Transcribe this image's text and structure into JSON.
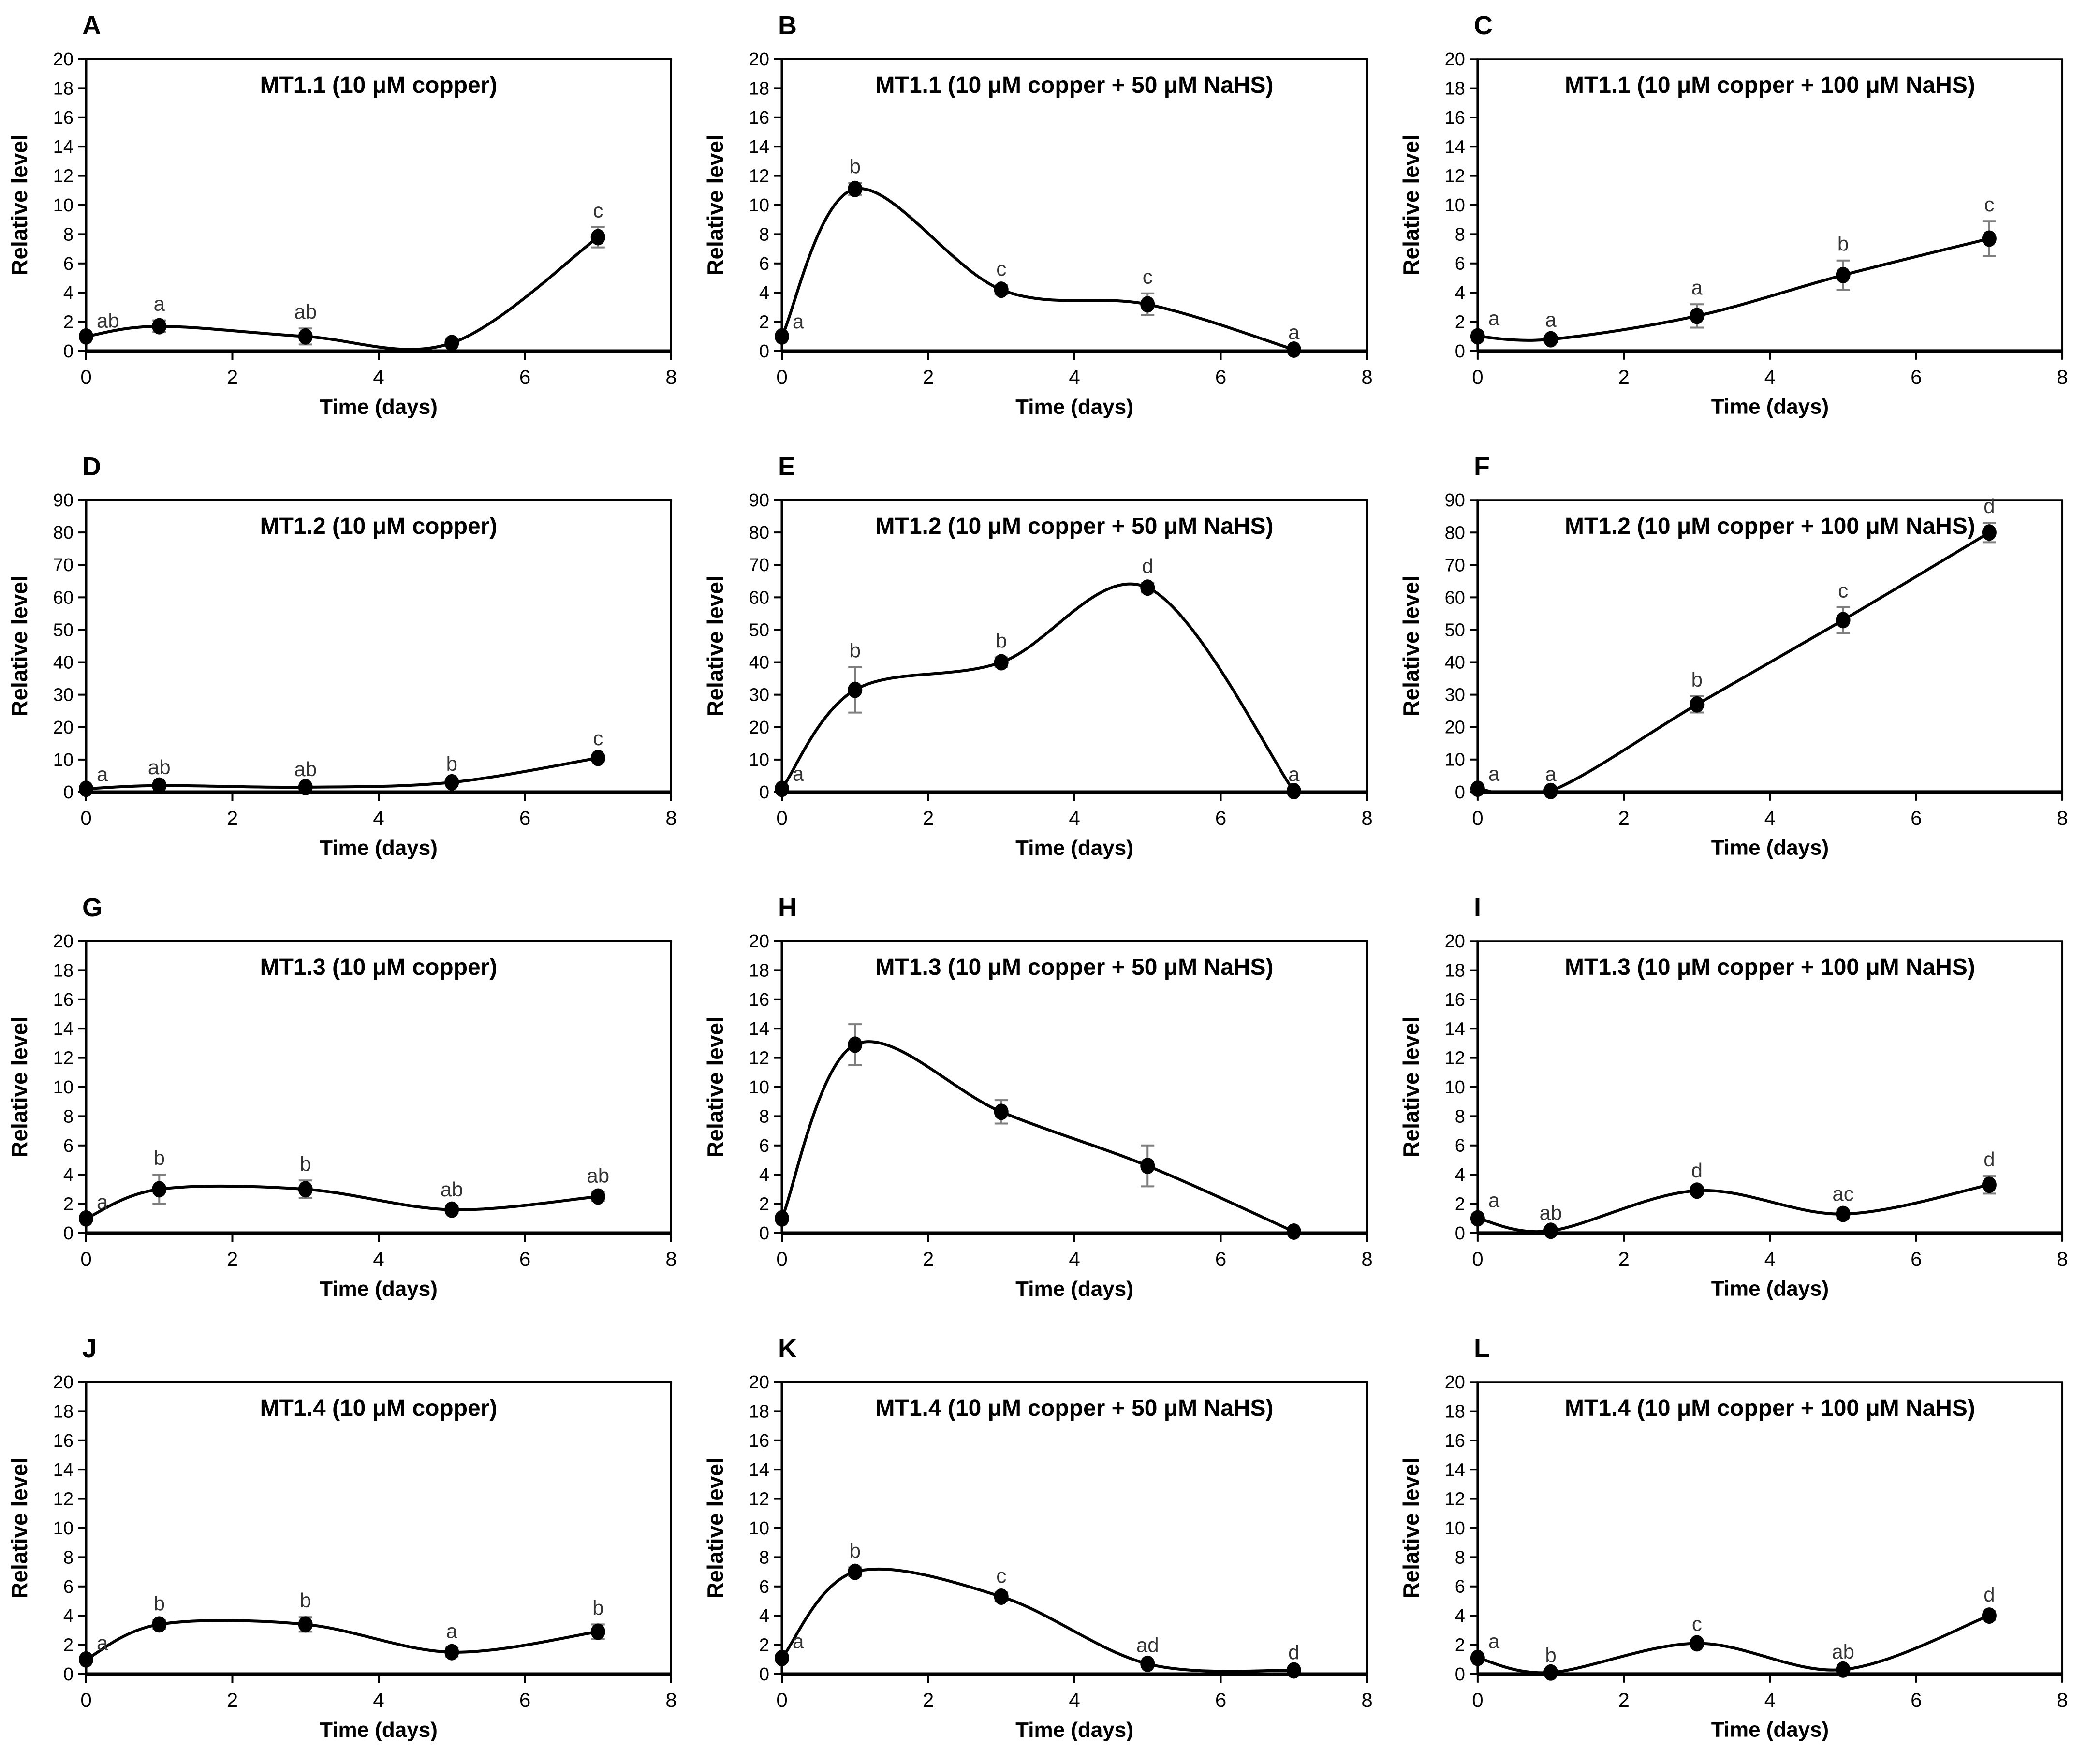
{
  "figure": {
    "xlabel": "Time (days)",
    "ylabel": "Relative level",
    "xlim": [
      0,
      8
    ],
    "x_ticks": [
      0,
      2,
      4,
      6,
      8
    ],
    "grid": false,
    "legend": "none",
    "colors": {
      "line": "#000000",
      "marker": "#000000",
      "error_bar": "#7f7f7f",
      "axis": "#000000",
      "text": "#000000",
      "sig_letter": "#333333"
    }
  },
  "chart_data": [
    {
      "type": "line",
      "panel": "A",
      "title": "MT1.1 (10 μM copper)",
      "xlabel": "Time (days)",
      "ylabel": "Relative level",
      "ylim": [
        0,
        20
      ],
      "ytick_step": 2,
      "x": [
        0,
        1,
        3,
        5,
        7
      ],
      "y": [
        1.0,
        1.7,
        1.0,
        0.55,
        7.8
      ],
      "err": [
        0.15,
        0.4,
        0.55,
        0.1,
        0.7
      ],
      "sig": [
        "ab",
        "a",
        "ab",
        "",
        "c"
      ]
    },
    {
      "type": "line",
      "panel": "B",
      "title": "MT1.1 (10 μM copper + 50 μM NaHS)",
      "xlabel": "Time (days)",
      "ylabel": "Relative level",
      "ylim": [
        0,
        20
      ],
      "ytick_step": 2,
      "x": [
        0,
        1,
        3,
        5,
        7
      ],
      "y": [
        1.0,
        11.1,
        4.2,
        3.2,
        0.1
      ],
      "err": [
        0.1,
        0.4,
        0.3,
        0.75,
        0.05
      ],
      "sig": [
        "a",
        "b",
        "c",
        "c",
        "a"
      ]
    },
    {
      "type": "line",
      "panel": "C",
      "title": "MT1.1 (10 μM copper + 100 μM NaHS)",
      "xlabel": "Time (days)",
      "ylabel": "Relative level",
      "ylim": [
        0,
        20
      ],
      "ytick_step": 2,
      "x": [
        0,
        1,
        3,
        5,
        7
      ],
      "y": [
        1.0,
        0.8,
        2.4,
        5.2,
        7.7
      ],
      "err": [
        0.3,
        0.2,
        0.8,
        1.0,
        1.2
      ],
      "sig": [
        "a",
        "a",
        "a",
        "b",
        "c"
      ]
    },
    {
      "type": "line",
      "panel": "D",
      "title": "MT1.2 (10 μM copper)",
      "xlabel": "Time (days)",
      "ylabel": "Relative level",
      "ylim": [
        0,
        90
      ],
      "ytick_step": 10,
      "x": [
        0,
        1,
        3,
        5,
        7
      ],
      "y": [
        1.0,
        2.0,
        1.5,
        3.0,
        10.5
      ],
      "err": [
        0.3,
        0.5,
        0.4,
        0.6,
        1.0
      ],
      "sig": [
        "a",
        "ab",
        "ab",
        "b",
        "c"
      ]
    },
    {
      "type": "line",
      "panel": "E",
      "title": "MT1.2 (10 μM copper + 50 μM NaHS)",
      "xlabel": "Time (days)",
      "ylabel": "Relative level",
      "ylim": [
        0,
        90
      ],
      "ytick_step": 10,
      "x": [
        0,
        1,
        3,
        5,
        7
      ],
      "y": [
        1.0,
        31.5,
        40.0,
        63.0,
        0.3
      ],
      "err": [
        0.4,
        7.0,
        1.5,
        1.5,
        0.1
      ],
      "sig": [
        "a",
        "b",
        "b",
        "d",
        "a"
      ]
    },
    {
      "type": "line",
      "panel": "F",
      "title": "MT1.2 (10 μM copper + 100 μM NaHS)",
      "xlabel": "Time (days)",
      "ylabel": "Relative level",
      "ylim": [
        0,
        90
      ],
      "ytick_step": 10,
      "x": [
        0,
        1,
        3,
        5,
        7
      ],
      "y": [
        1.0,
        0.3,
        27.0,
        53.0,
        80.0
      ],
      "err": [
        0.4,
        0.1,
        2.5,
        4.0,
        3.0
      ],
      "sig": [
        "a",
        "a",
        "b",
        "c",
        "d"
      ]
    },
    {
      "type": "line",
      "panel": "G",
      "title": "MT1.3 (10 μM copper)",
      "xlabel": "Time (days)",
      "ylabel": "Relative level",
      "ylim": [
        0,
        20
      ],
      "ytick_step": 2,
      "x": [
        0,
        1,
        3,
        5,
        7
      ],
      "y": [
        1.0,
        3.0,
        3.0,
        1.6,
        2.5
      ],
      "err": [
        0.2,
        1.0,
        0.6,
        0.25,
        0.3
      ],
      "sig": [
        "a",
        "b",
        "b",
        "ab",
        "ab"
      ]
    },
    {
      "type": "line",
      "panel": "H",
      "title": "MT1.3 (10 μM copper + 50 μM NaHS)",
      "xlabel": "Time (days)",
      "ylabel": "Relative level",
      "ylim": [
        0,
        20
      ],
      "ytick_step": 2,
      "x": [
        0,
        1,
        3,
        5,
        7
      ],
      "y": [
        1.0,
        12.9,
        8.3,
        4.6,
        0.1
      ],
      "err": [
        0.15,
        1.4,
        0.8,
        1.4,
        0.05
      ],
      "sig": [
        "",
        "",
        "",
        "",
        ""
      ]
    },
    {
      "type": "line",
      "panel": "I",
      "title": "MT1.3 (10 μM copper + 100 μM NaHS)",
      "xlabel": "Time (days)",
      "ylabel": "Relative level",
      "ylim": [
        0,
        20
      ],
      "ytick_step": 2,
      "x": [
        0,
        1,
        3,
        5,
        7
      ],
      "y": [
        1.0,
        0.15,
        2.9,
        1.3,
        3.3
      ],
      "err": [
        0.3,
        0.1,
        0.25,
        0.25,
        0.6
      ],
      "sig": [
        "a",
        "ab",
        "d",
        "ac",
        "d"
      ]
    },
    {
      "type": "line",
      "panel": "J",
      "title": "MT1.4 (10 μM copper)",
      "xlabel": "Time (days)",
      "ylabel": "Relative level",
      "ylim": [
        0,
        20
      ],
      "ytick_step": 2,
      "x": [
        0,
        1,
        3,
        5,
        7
      ],
      "y": [
        1.0,
        3.4,
        3.4,
        1.5,
        2.9
      ],
      "err": [
        0.2,
        0.3,
        0.5,
        0.3,
        0.5
      ],
      "sig": [
        "a",
        "b",
        "b",
        "a",
        "b"
      ]
    },
    {
      "type": "line",
      "panel": "K",
      "title": "MT1.4 (10 μM copper + 50 μM NaHS)",
      "xlabel": "Time (days)",
      "ylabel": "Relative level",
      "ylim": [
        0,
        20
      ],
      "ytick_step": 2,
      "x": [
        0,
        1,
        3,
        5,
        7
      ],
      "y": [
        1.1,
        7.0,
        5.3,
        0.7,
        0.25
      ],
      "err": [
        0.2,
        0.3,
        0.3,
        0.15,
        0.1
      ],
      "sig": [
        "a",
        "b",
        "c",
        "ad",
        "d"
      ]
    },
    {
      "type": "line",
      "panel": "L",
      "title": "MT1.4 (10 μM copper + 100 μM NaHS)",
      "xlabel": "Time (days)",
      "ylabel": "Relative level",
      "ylim": [
        0,
        20
      ],
      "ytick_step": 2,
      "x": [
        0,
        1,
        3,
        5,
        7
      ],
      "y": [
        1.1,
        0.1,
        2.1,
        0.3,
        4.0
      ],
      "err": [
        0.2,
        0.05,
        0.2,
        0.1,
        0.3
      ],
      "sig": [
        "a",
        "b",
        "c",
        "ab",
        "d"
      ]
    }
  ]
}
